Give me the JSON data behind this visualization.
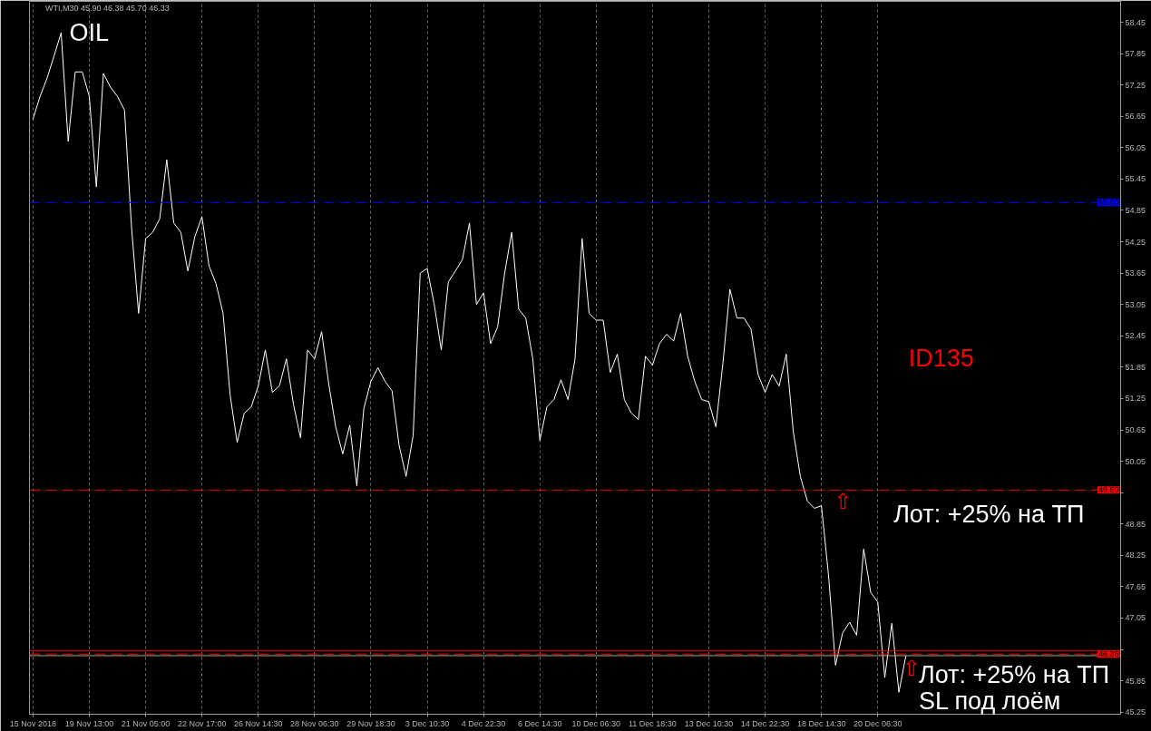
{
  "chart_data": {
    "type": "line",
    "title": "OIL",
    "annotations": [
      "WTI,M30 45.90 46.38 45.70 46.33",
      "ID135",
      "⇧",
      "Лот: +25% на ТП",
      "⇧",
      "Лот: +25% на ТП\nSL под лоём"
    ],
    "categories": [
      "15 Nov 2018",
      null,
      null,
      null,
      null,
      null,
      null,
      null,
      "19 Nov 13:00",
      null,
      null,
      null,
      null,
      null,
      null,
      null,
      "21 Nov 05:00",
      null,
      null,
      null,
      null,
      null,
      null,
      null,
      "22 Nov 17:00",
      null,
      null,
      null,
      null,
      null,
      null,
      null,
      "26 Nov 14:30",
      null,
      null,
      null,
      null,
      null,
      null,
      null,
      "28 Nov 06:30",
      null,
      null,
      null,
      null,
      null,
      null,
      null,
      "29 Nov 18:30",
      null,
      null,
      null,
      null,
      null,
      null,
      null,
      "3 Dec 10:30",
      null,
      null,
      null,
      null,
      null,
      null,
      null,
      "4 Dec 22:30",
      null,
      null,
      null,
      null,
      null,
      null,
      null,
      "6 Dec 14:30",
      null,
      null,
      null,
      null,
      null,
      null,
      null,
      "10 Dec 06:30",
      null,
      null,
      null,
      null,
      null,
      null,
      null,
      "11 Dec 18:30",
      null,
      null,
      null,
      null,
      null,
      null,
      null,
      "13 Dec 10:30",
      null,
      null,
      null,
      null,
      null,
      null,
      null,
      "14 Dec 22:30",
      null,
      null,
      null,
      null,
      null,
      null,
      null,
      "18 Dec 14:30",
      null,
      null,
      null,
      null,
      null,
      null,
      null,
      "20 Dec 06:30",
      null,
      null,
      null,
      null,
      null,
      null,
      null,
      null,
      null,
      null,
      null,
      null,
      null,
      null,
      null,
      null,
      null,
      null,
      null,
      null,
      null,
      null,
      null,
      null,
      null,
      null,
      null,
      null,
      null,
      null,
      null,
      null,
      null,
      null
    ],
    "series": [
      {
        "color": "#ffffff",
        "values": [
          56.6,
          57.03,
          57.38,
          57.81,
          58.25,
          56.17,
          57.5,
          57.5,
          57.03,
          55.3,
          57.47,
          57.21,
          57.03,
          56.77,
          54.52,
          52.88,
          54.31,
          54.43,
          54.69,
          55.82,
          54.61,
          54.43,
          53.69,
          54.35,
          54.73,
          53.79,
          53.45,
          52.88,
          51.32,
          50.41,
          50.97,
          51.09,
          51.49,
          52.18,
          51.37,
          51.49,
          52.01,
          51.14,
          50.5,
          52.18,
          52.01,
          52.53,
          51.54,
          50.71,
          50.19,
          50.74,
          49.58,
          51.06,
          51.58,
          51.84,
          51.58,
          51.4,
          50.36,
          49.76,
          50.54,
          53.65,
          53.74,
          53.05,
          52.18,
          53.48,
          53.69,
          53.91,
          54.61,
          53.05,
          53.27,
          52.3,
          52.62,
          53.65,
          54.43,
          52.96,
          52.79,
          52.01,
          50.45,
          51.09,
          51.23,
          51.61,
          51.23,
          52.01,
          54.31,
          52.88,
          52.75,
          52.75,
          51.75,
          52.1,
          51.23,
          50.97,
          50.85,
          52.06,
          51.89,
          52.3,
          52.48,
          52.35,
          52.88,
          52.06,
          51.58,
          51.23,
          51.19,
          50.71,
          51.92,
          53.34,
          52.79,
          52.79,
          52.58,
          51.71,
          51.37,
          51.71,
          51.49,
          52.1,
          50.62,
          49.76,
          49.29,
          49.15,
          49.2,
          47.88,
          46.15,
          46.76,
          46.97,
          46.72,
          48.37,
          47.54,
          47.36,
          45.91,
          46.95,
          45.63,
          46.33,
          null,
          null,
          null,
          null,
          null,
          null,
          null,
          null,
          null,
          null,
          null,
          null,
          null,
          null,
          null,
          null,
          null,
          null,
          null,
          null,
          null,
          null,
          null,
          null,
          null,
          null,
          null,
          null,
          null,
          null
        ]
      }
    ],
    "ylim": [
      45.21,
      58.85
    ],
    "yticks": [
      45.25,
      45.85,
      {
        "value": 46.45,
        "label": null
      },
      47.05,
      47.65,
      48.25,
      48.85,
      {
        "value": 49.45,
        "label": null
      },
      50.05,
      50.65,
      51.25,
      51.85,
      52.45,
      53.05,
      53.65,
      54.25,
      54.85,
      55.45,
      56.05,
      56.65,
      57.25,
      57.85,
      58.45
    ],
    "ref_lines": [
      {
        "axis": "y",
        "value": 55.0,
        "label": "55.00",
        "color": "#0000ff",
        "line_style": "dashed"
      },
      {
        "axis": "y",
        "value": 49.5,
        "label": "49.50",
        "color": "#ff0000",
        "line_style": "dashed"
      },
      {
        "axis": "y",
        "value": 46.42,
        "color": "#ff0000",
        "line_style": "solid"
      },
      {
        "axis": "y",
        "value": 46.33,
        "color": "#a0a0a0",
        "line_style": "solid"
      },
      {
        "axis": "y",
        "value": 46.36,
        "label": "46.36",
        "color": "#ff0000",
        "line_style": "dashed"
      }
    ],
    "grid": "x"
  }
}
